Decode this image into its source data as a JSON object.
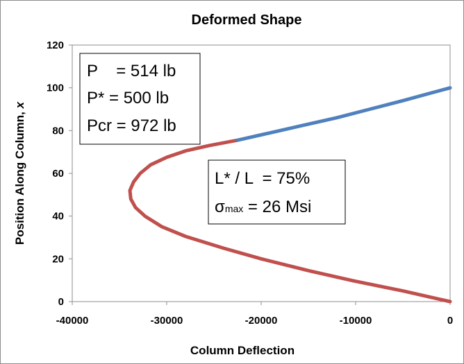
{
  "chart_data": {
    "type": "line",
    "title": "Deformed Shape",
    "xlabel": "Column Deflection",
    "ylabel": "Position Along Column, ",
    "ylabel_var": "x",
    "xlim": [
      -40000,
      0
    ],
    "ylim": [
      0,
      120
    ],
    "xticks": [
      "-40000",
      "-30000",
      "-20000",
      "-10000",
      "0"
    ],
    "yticks": [
      "0",
      "20",
      "40",
      "60",
      "80",
      "100",
      "120"
    ],
    "grid": false,
    "legend": "none",
    "series": [
      {
        "color": "#c0504d",
        "x": [
          0,
          -5000,
          -10000,
          -15000,
          -20000,
          -24000,
          -28000,
          -30500,
          -32300,
          -33300,
          -33800,
          -33900,
          -33500,
          -32800,
          -31700,
          -30000,
          -28000,
          -25500,
          -22500
        ],
        "y": [
          0,
          5,
          9.5,
          14.5,
          20,
          25,
          30.5,
          35,
          40,
          44,
          48,
          52,
          56,
          60,
          64,
          67.5,
          70.5,
          73,
          75.5
        ]
      },
      {
        "color": "#4f81bd",
        "x": [
          -22500,
          -19000,
          -15500,
          -12000,
          -8500,
          -5000,
          -2500,
          0
        ],
        "y": [
          75.5,
          79,
          82.5,
          86,
          90,
          94,
          97,
          100
        ]
      }
    ]
  },
  "annotations": {
    "box1": [
      "P    = 514 lb",
      "P* = 500 lb",
      "Pcr = 972 lb"
    ],
    "box2_line1": "L* / L  = 75%",
    "box2_sigma": "σ",
    "box2_sub": "max",
    "box2_value": " = 26 Msi"
  }
}
